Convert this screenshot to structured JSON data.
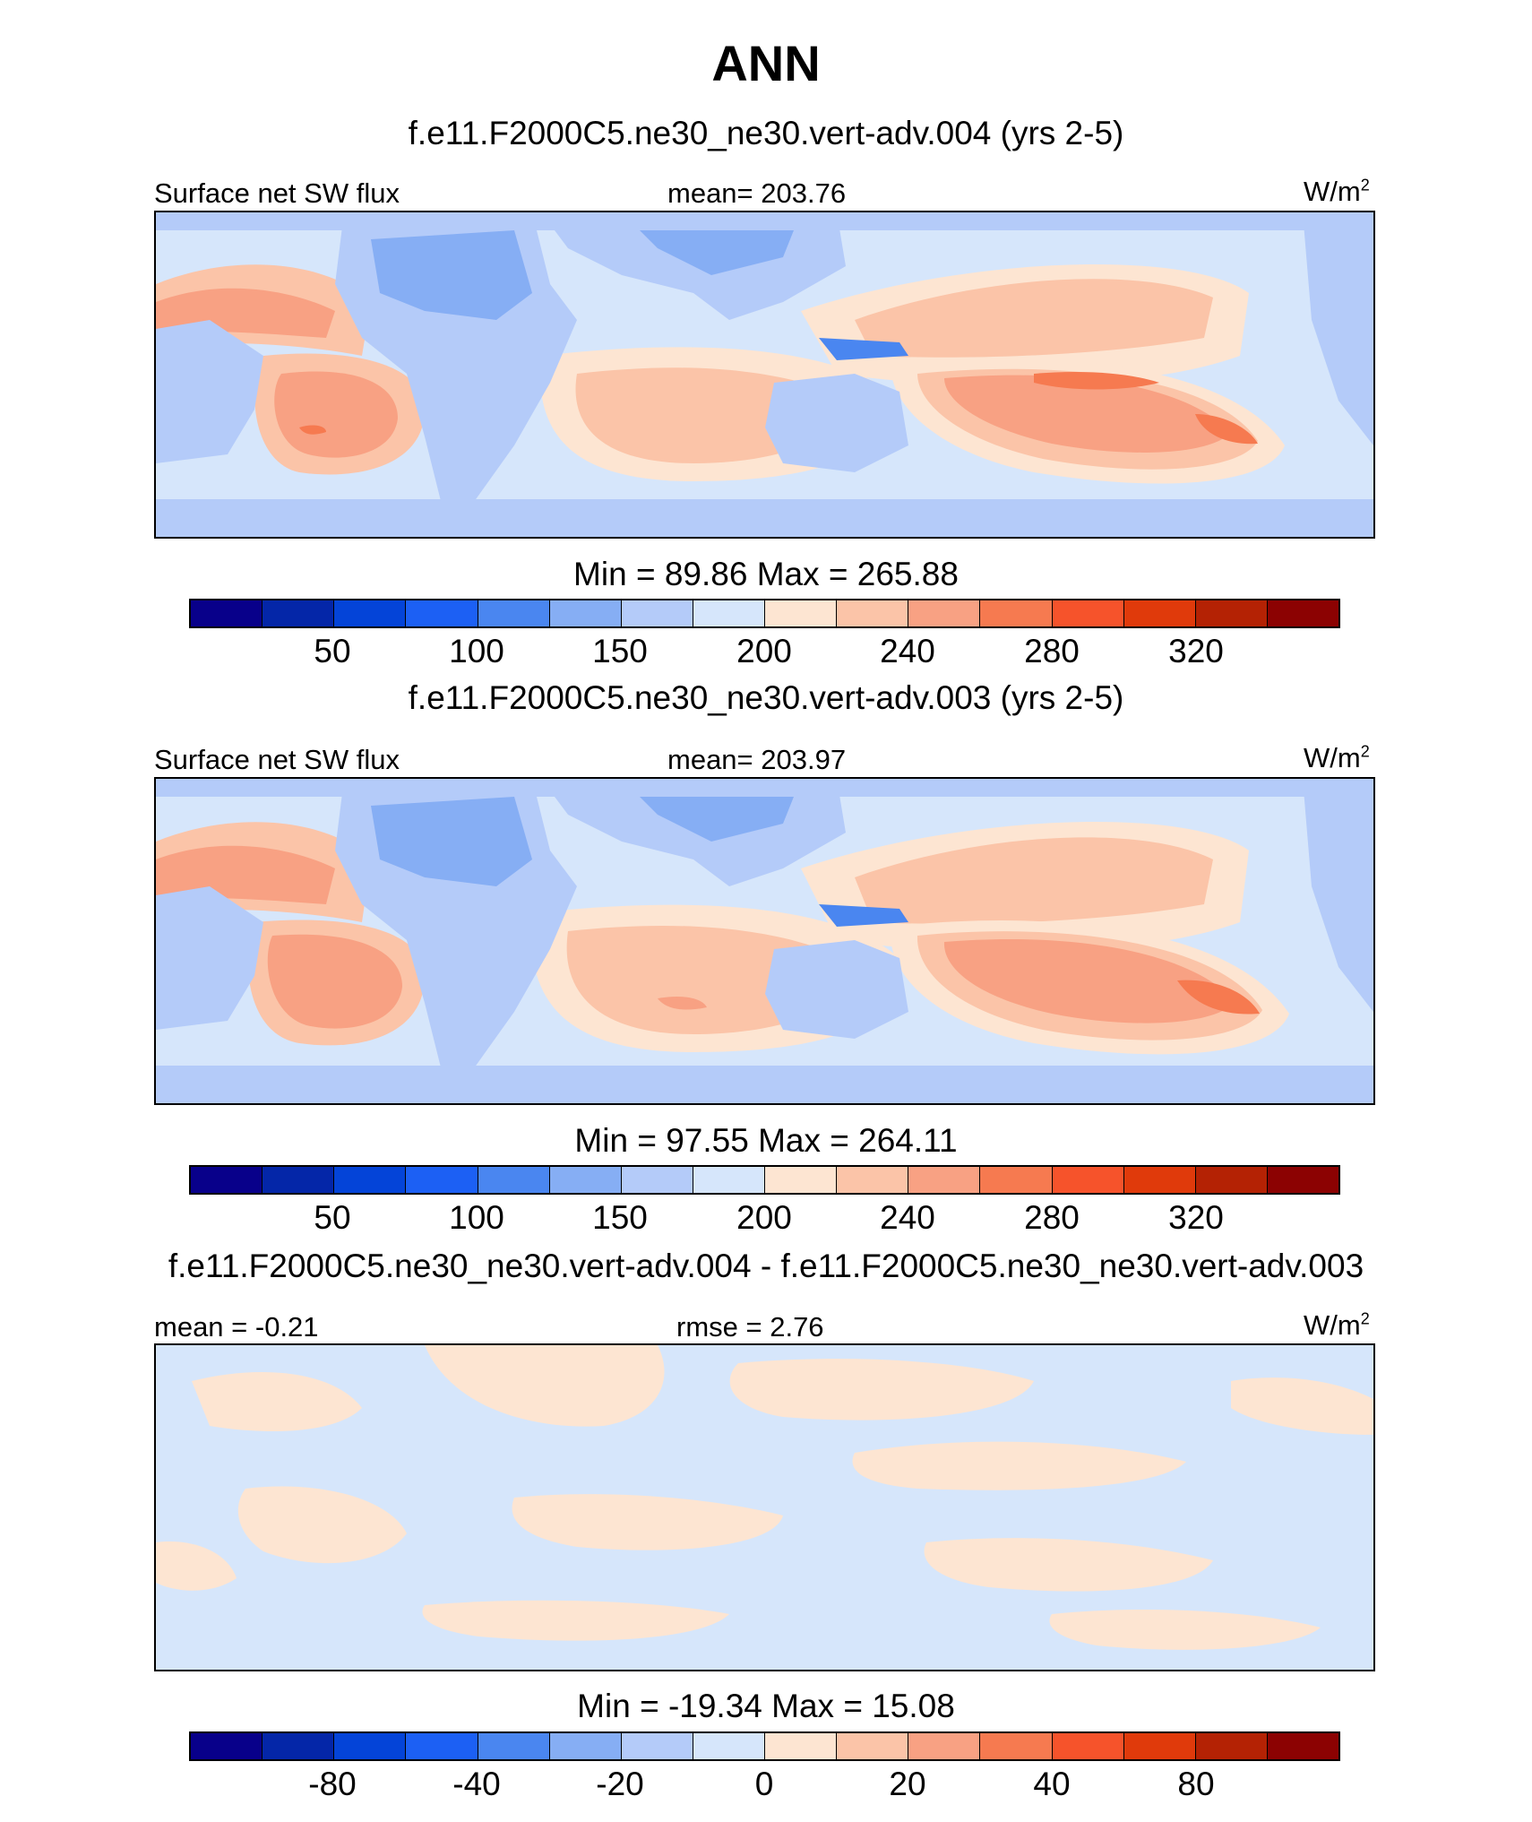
{
  "title": "ANN",
  "colors": [
    "#08008a",
    "#0426a8",
    "#0444d8",
    "#1c60f4",
    "#4a86f0",
    "#86aef4",
    "#b4cbf9",
    "#d6e6fb",
    "#fde5d2",
    "#fbc4a8",
    "#f8a183",
    "#f67a50",
    "#f6532b",
    "#e03a0b",
    "#b42204",
    "#8c0202"
  ],
  "panels": [
    {
      "title": "f.e11.F2000C5.ne30_ne30.vert-adv.004 (yrs 2-5)",
      "left_label": "Surface net SW flux",
      "center_label": "mean= 203.76",
      "units": "W/m",
      "units_sup": "2",
      "minmax": "Min =  89.86 Max = 265.88",
      "tick_labels": [
        "50",
        "100",
        "150",
        "200",
        "240",
        "280",
        "320"
      ]
    },
    {
      "title": "f.e11.F2000C5.ne30_ne30.vert-adv.003 (yrs 2-5)",
      "left_label": "Surface net SW flux",
      "center_label": "mean= 203.97",
      "units": "W/m",
      "units_sup": "2",
      "minmax": "Min =  97.55 Max = 264.11",
      "tick_labels": [
        "50",
        "100",
        "150",
        "200",
        "240",
        "280",
        "320"
      ]
    },
    {
      "title": "f.e11.F2000C5.ne30_ne30.vert-adv.004 - f.e11.F2000C5.ne30_ne30.vert-adv.003",
      "left_label": "mean =  -0.21",
      "center_label": "rmse =   2.76",
      "units": "W/m",
      "units_sup": "2",
      "minmax": "Min = -19.34 Max =  15.08",
      "tick_labels": [
        "-80",
        "-40",
        "-20",
        "0",
        "20",
        "40",
        "80"
      ]
    }
  ],
  "chart_data": [
    {
      "type": "heatmap",
      "title": "f.e11.F2000C5.ne30_ne30.vert-adv.004 (yrs 2-5)",
      "variable": "Surface net SW flux",
      "units": "W/m^2",
      "mean": 203.76,
      "min": 89.86,
      "max": 265.88,
      "colorbar_levels": [
        25,
        50,
        75,
        100,
        125,
        150,
        175,
        200,
        220,
        240,
        260,
        280,
        300,
        320,
        340
      ],
      "colorbar_tick_labels": [
        "50",
        "100",
        "150",
        "200",
        "240",
        "280",
        "320"
      ]
    },
    {
      "type": "heatmap",
      "title": "f.e11.F2000C5.ne30_ne30.vert-adv.003 (yrs 2-5)",
      "variable": "Surface net SW flux",
      "units": "W/m^2",
      "mean": 203.97,
      "min": 97.55,
      "max": 264.11,
      "colorbar_levels": [
        25,
        50,
        75,
        100,
        125,
        150,
        175,
        200,
        220,
        240,
        260,
        280,
        300,
        320,
        340
      ],
      "colorbar_tick_labels": [
        "50",
        "100",
        "150",
        "200",
        "240",
        "280",
        "320"
      ]
    },
    {
      "type": "heatmap",
      "title": "f.e11.F2000C5.ne30_ne30.vert-adv.004 - f.e11.F2000C5.ne30_ne30.vert-adv.003",
      "units": "W/m^2",
      "mean": -0.21,
      "rmse": 2.76,
      "min": -19.34,
      "max": 15.08,
      "colorbar_levels": [
        -100,
        -80,
        -60,
        -40,
        -30,
        -20,
        -10,
        0,
        10,
        20,
        30,
        40,
        60,
        80,
        100
      ],
      "colorbar_tick_labels": [
        "-80",
        "-40",
        "-20",
        "0",
        "20",
        "40",
        "80"
      ]
    }
  ]
}
